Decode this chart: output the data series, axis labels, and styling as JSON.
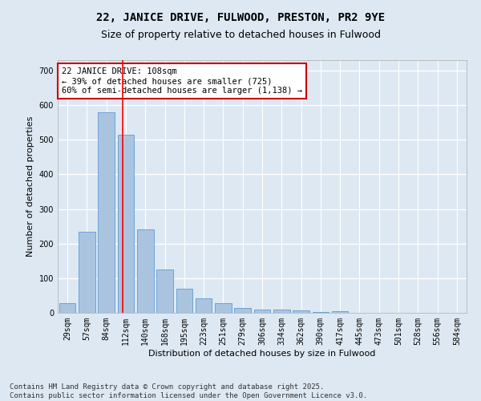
{
  "title": "22, JANICE DRIVE, FULWOOD, PRESTON, PR2 9YE",
  "subtitle": "Size of property relative to detached houses in Fulwood",
  "xlabel": "Distribution of detached houses by size in Fulwood",
  "ylabel": "Number of detached properties",
  "bar_color": "#aac4e0",
  "bar_edge_color": "#5b9bd5",
  "background_color": "#dde8f3",
  "grid_color": "#ffffff",
  "categories": [
    "29sqm",
    "57sqm",
    "84sqm",
    "112sqm",
    "140sqm",
    "168sqm",
    "195sqm",
    "223sqm",
    "251sqm",
    "279sqm",
    "306sqm",
    "334sqm",
    "362sqm",
    "390sqm",
    "417sqm",
    "445sqm",
    "473sqm",
    "501sqm",
    "528sqm",
    "556sqm",
    "584sqm"
  ],
  "values": [
    27,
    233,
    580,
    515,
    240,
    125,
    70,
    42,
    27,
    15,
    10,
    10,
    8,
    3,
    5,
    0,
    0,
    0,
    0,
    0,
    1
  ],
  "ylim": [
    0,
    730
  ],
  "yticks": [
    0,
    100,
    200,
    300,
    400,
    500,
    600,
    700
  ],
  "property_line_x": 2.85,
  "annotation_text": "22 JANICE DRIVE: 108sqm\n← 39% of detached houses are smaller (725)\n60% of semi-detached houses are larger (1,138) →",
  "annotation_box_color": "#ffffff",
  "annotation_box_edge_color": "#cc0000",
  "footer_line1": "Contains HM Land Registry data © Crown copyright and database right 2025.",
  "footer_line2": "Contains public sector information licensed under the Open Government Licence v3.0.",
  "title_fontsize": 10,
  "subtitle_fontsize": 9,
  "axis_label_fontsize": 8,
  "tick_fontsize": 7,
  "annotation_fontsize": 7.5,
  "footer_fontsize": 6.5
}
